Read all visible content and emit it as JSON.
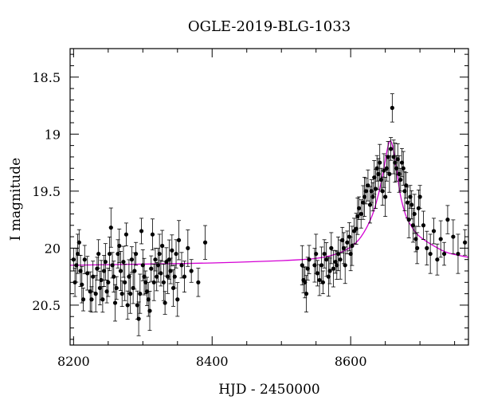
{
  "chart_data": {
    "type": "scatter",
    "title": "OGLE-2019-BLG-1033",
    "xlabel": "HJD - 2450000",
    "ylabel": "I magnitude",
    "xlim": [
      8195,
      8770
    ],
    "ylim": [
      20.85,
      18.25
    ],
    "y_inverted": true,
    "x_ticks": [
      8200,
      8400,
      8600
    ],
    "y_ticks": [
      18.5,
      19,
      19.5,
      20,
      20.5
    ],
    "x_minor_step": 50,
    "y_minor_step": 0.1,
    "grid": false,
    "colors": {
      "data": "#000000",
      "model": "#d400d4",
      "axes": "#000000"
    },
    "model": {
      "name": "",
      "x": [
        8195,
        8300,
        8400,
        8500,
        8550,
        8580,
        8600,
        8615,
        8630,
        8640,
        8648,
        8653,
        8657,
        8661,
        8666,
        8672,
        8680,
        8690,
        8700,
        8720,
        8740,
        8770
      ],
      "y": [
        20.15,
        20.14,
        20.13,
        20.11,
        20.09,
        20.05,
        19.99,
        19.9,
        19.73,
        19.53,
        19.3,
        19.13,
        19.06,
        19.12,
        19.3,
        19.54,
        19.72,
        19.83,
        19.9,
        19.98,
        20.04,
        20.08
      ]
    },
    "series": [
      {
        "name": "",
        "x": [
          8200,
          8202,
          8204,
          8206,
          8208,
          8210,
          8212,
          8214,
          8216,
          8220,
          8224,
          8226,
          8228,
          8232,
          8234,
          8236,
          8238,
          8240,
          8242,
          8244,
          8246,
          8248,
          8250,
          8252,
          8254,
          8256,
          8258,
          8260,
          8262,
          8264,
          8266,
          8268,
          8270,
          8272,
          8274,
          8276,
          8278,
          8280,
          8282,
          8284,
          8286,
          8288,
          8290,
          8292,
          8294,
          8296,
          8298,
          8300,
          8302,
          8304,
          8306,
          8308,
          8310,
          8312,
          8314,
          8316,
          8318,
          8320,
          8322,
          8324,
          8326,
          8328,
          8330,
          8332,
          8334,
          8336,
          8338,
          8340,
          8342,
          8344,
          8346,
          8348,
          8350,
          8352,
          8356,
          8360,
          8365,
          8370,
          8380,
          8390,
          8530,
          8532,
          8534,
          8536,
          8538,
          8540,
          8548,
          8550,
          8552,
          8555,
          8558,
          8560,
          8562,
          8565,
          8568,
          8570,
          8572,
          8575,
          8578,
          8580,
          8582,
          8585,
          8588,
          8590,
          8592,
          8595,
          8598,
          8600,
          8602,
          8605,
          8608,
          8610,
          8612,
          8615,
          8618,
          8620,
          8622,
          8625,
          8628,
          8630,
          8632,
          8634,
          8636,
          8638,
          8640,
          8642,
          8644,
          8646,
          8648,
          8650,
          8652,
          8654,
          8656,
          8658,
          8660,
          8662,
          8664,
          8666,
          8668,
          8670,
          8672,
          8674,
          8676,
          8678,
          8680,
          8682,
          8684,
          8686,
          8688,
          8690,
          8692,
          8694,
          8696,
          8698,
          8700,
          8705,
          8710,
          8715,
          8720,
          8725,
          8730,
          8735,
          8740,
          8748,
          8755,
          8765
        ],
        "y": [
          20.1,
          20.3,
          20.15,
          20.05,
          19.95,
          20.2,
          20.32,
          20.45,
          20.1,
          20.22,
          20.38,
          20.45,
          20.25,
          20.4,
          20.18,
          20.05,
          20.35,
          20.28,
          20.45,
          20.2,
          20.12,
          20.38,
          20.3,
          20.05,
          19.82,
          20.15,
          20.25,
          20.48,
          20.35,
          20.05,
          19.98,
          20.2,
          20.4,
          20.12,
          20.3,
          19.88,
          20.5,
          20.25,
          20.4,
          20.1,
          20.35,
          20.2,
          20.05,
          20.5,
          20.62,
          20.4,
          19.85,
          20.15,
          20.25,
          20.3,
          20.38,
          20.45,
          20.55,
          20.18,
          19.88,
          20.3,
          20.1,
          20.25,
          20.15,
          20.05,
          20.22,
          19.98,
          20.3,
          20.48,
          20.12,
          20.25,
          20.1,
          20.2,
          20.02,
          20.35,
          20.25,
          20.05,
          20.45,
          19.93,
          20.15,
          20.25,
          20.0,
          20.2,
          20.3,
          19.95,
          20.15,
          20.28,
          20.3,
          20.4,
          20.18,
          20.1,
          20.15,
          20.05,
          20.22,
          20.28,
          20.15,
          20.3,
          20.05,
          20.1,
          20.25,
          20.2,
          20.0,
          20.18,
          20.12,
          20.15,
          20.05,
          20.1,
          19.93,
          20.0,
          20.15,
          19.95,
          19.9,
          20.05,
          19.98,
          19.85,
          19.83,
          19.72,
          19.65,
          19.7,
          19.6,
          19.55,
          19.5,
          19.45,
          19.62,
          19.5,
          19.55,
          19.38,
          19.48,
          19.3,
          19.35,
          19.25,
          19.4,
          19.5,
          19.32,
          19.55,
          19.3,
          19.2,
          19.35,
          19.13,
          18.77,
          19.2,
          19.25,
          19.3,
          19.22,
          19.35,
          19.4,
          19.25,
          19.3,
          19.5,
          19.45,
          19.6,
          19.75,
          19.55,
          19.62,
          19.8,
          19.7,
          19.92,
          20.0,
          19.65,
          19.55,
          19.8,
          20.0,
          20.05,
          19.85,
          20.1,
          19.92,
          20.05,
          19.75,
          19.9,
          20.05,
          19.95
        ]
      }
    ]
  }
}
